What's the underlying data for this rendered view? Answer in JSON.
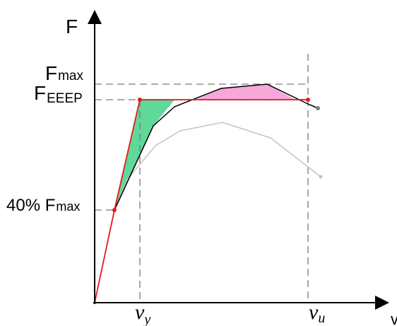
{
  "labels": {
    "y_axis": "F",
    "x_axis": "v",
    "f_max_main": "F",
    "f_max_sub": "max",
    "f_eeep_main": "F",
    "f_eeep_sub": "EEEP",
    "forty_main": "40% F",
    "forty_sub": "max",
    "v_y_main": "ν",
    "v_y_sub": "y",
    "v_u_main": "ν",
    "v_u_sub": "u"
  },
  "colors": {
    "axis": "#000000",
    "guide": "#7a7a7a",
    "bilinear": "#e31a1c",
    "curve": "#000000",
    "grey_curve": "#c4c4c4",
    "green_area": "#5fd89a",
    "pink_area": "#f7a8d8",
    "end_point": "#808080"
  }
}
